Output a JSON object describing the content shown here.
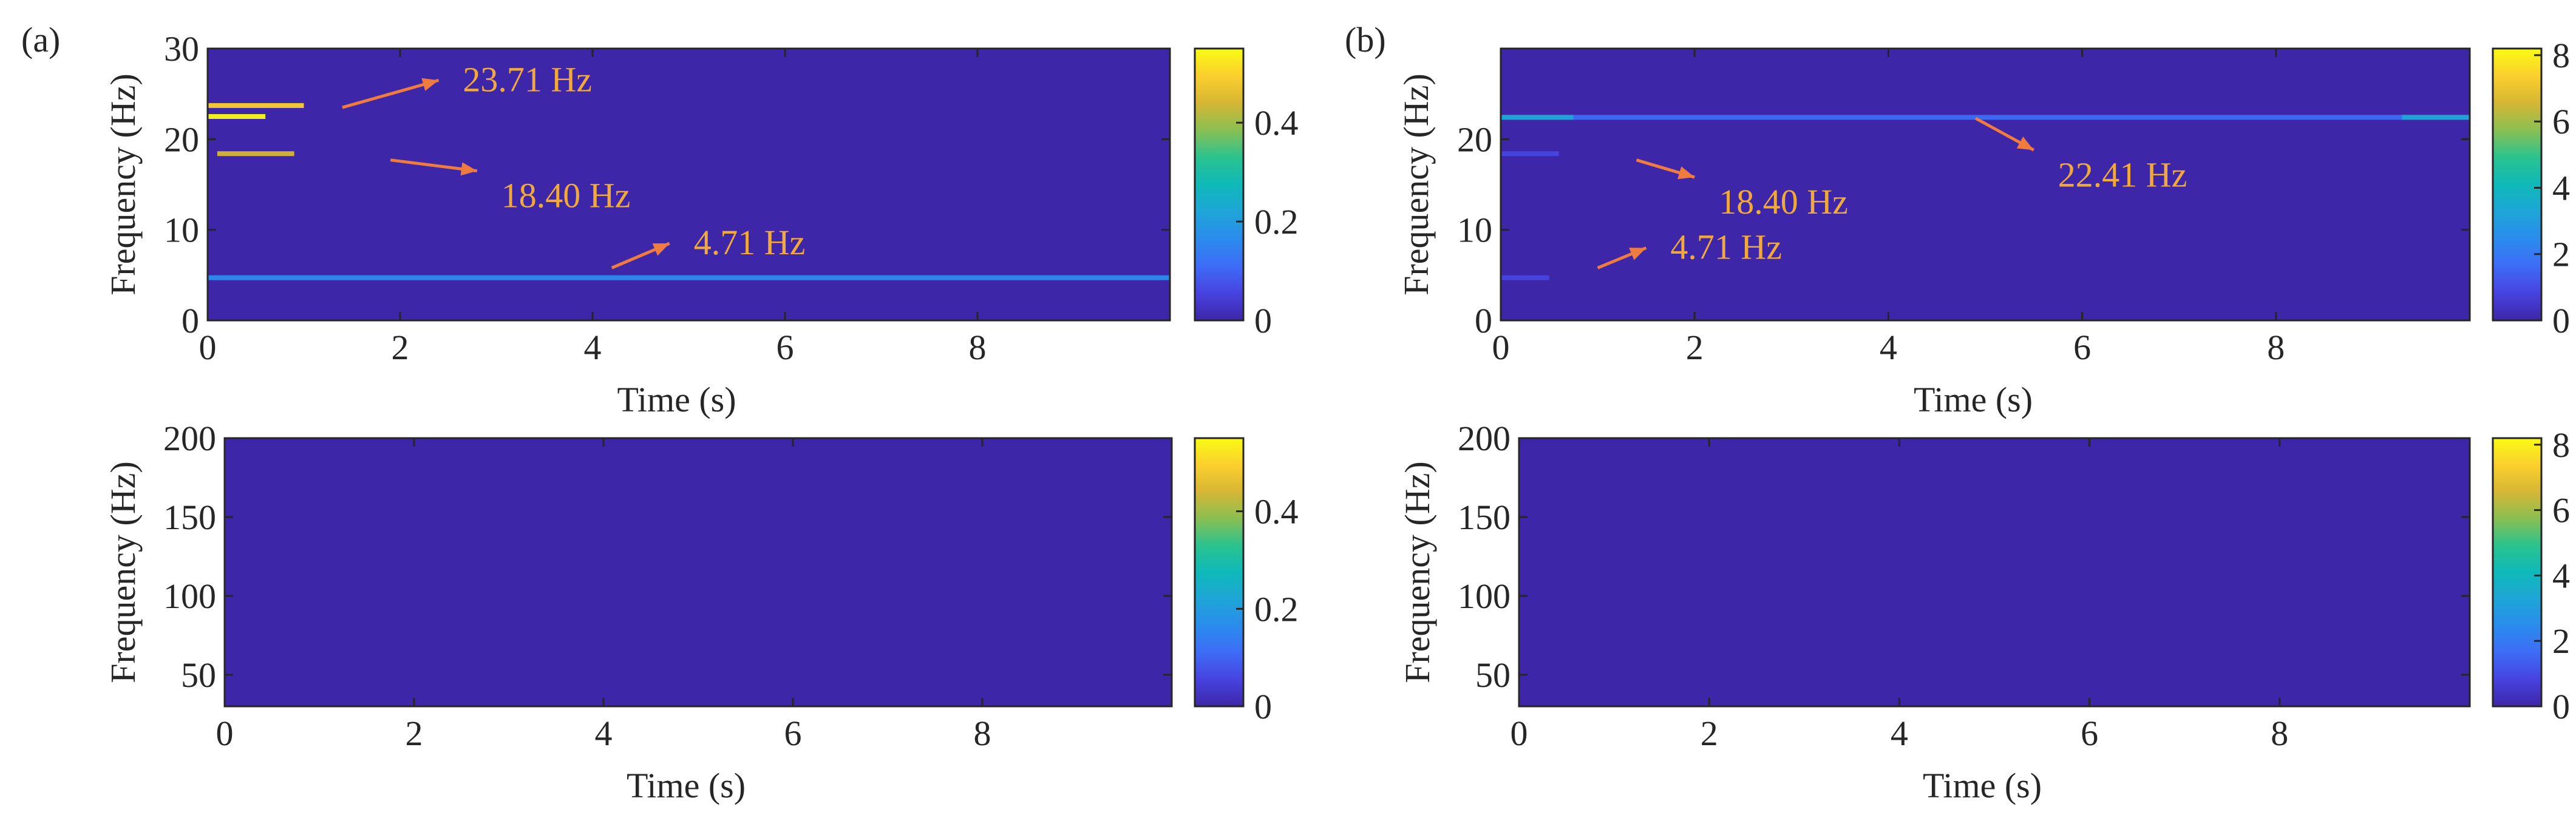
{
  "chart_data": [
    {
      "panel": "(a)",
      "type": "heatmap",
      "title": "",
      "xlabel": "Time (s)",
      "ylabel": "Frequency (Hz)",
      "xlim": [
        0,
        10
      ],
      "ylim": [
        0,
        30
      ],
      "xticks": [
        0,
        2,
        4,
        6,
        8
      ],
      "yticks": [
        0,
        10,
        20,
        30
      ],
      "colorbar": {
        "min": 0,
        "max": 0.55,
        "ticks": [
          0,
          0.2,
          0.4
        ]
      },
      "ridges": [
        {
          "freq": 23.71,
          "t_start": 0.0,
          "t_end": 1.0,
          "value": 0.5
        },
        {
          "freq": 22.5,
          "t_start": 0.0,
          "t_end": 0.6,
          "value": 0.55
        },
        {
          "freq": 18.4,
          "t_start": 0.1,
          "t_end": 0.9,
          "value": 0.45
        },
        {
          "freq": 4.71,
          "t_start": 0.0,
          "t_end": 10.0,
          "value": 0.15
        }
      ],
      "annotations": [
        {
          "text": "23.71 Hz",
          "from": [
            1.4,
            23.5
          ],
          "to": [
            2.4,
            26.5
          ]
        },
        {
          "text": "18.40 Hz",
          "from": [
            1.9,
            17.7
          ],
          "to": [
            2.8,
            16.5
          ]
        },
        {
          "text": "4.71  Hz",
          "from": [
            4.2,
            5.8
          ],
          "to": [
            4.8,
            8.5
          ]
        }
      ]
    },
    {
      "panel": "(a)",
      "type": "heatmap",
      "title": "",
      "xlabel": "Time (s)",
      "ylabel": "Frequency (Hz)",
      "xlim": [
        0,
        10
      ],
      "ylim": [
        30,
        200
      ],
      "xticks": [
        0,
        2,
        4,
        6,
        8
      ],
      "yticks": [
        50,
        100,
        150,
        200
      ],
      "colorbar": {
        "min": 0,
        "max": 0.55,
        "ticks": [
          0,
          0.2,
          0.4
        ]
      },
      "ridges": []
    },
    {
      "panel": "(b)",
      "type": "heatmap",
      "title": "",
      "xlabel": "Time (s)",
      "ylabel": "Frequency (Hz)",
      "xlim": [
        0,
        10
      ],
      "ylim": [
        0,
        30
      ],
      "xticks": [
        0,
        2,
        4,
        6,
        8
      ],
      "yticks": [
        0,
        10,
        20
      ],
      "colorbar": {
        "min": 0,
        "max": 8.2,
        "ticks": [
          0,
          2,
          4,
          6,
          8
        ]
      },
      "ridges": [
        {
          "freq": 22.41,
          "t_start": 0.0,
          "t_end": 10.0,
          "value": 1.5
        },
        {
          "freq": 22.41,
          "t_start": 0.0,
          "t_end": 0.75,
          "value": 3.5
        },
        {
          "freq": 22.41,
          "t_start": 9.3,
          "t_end": 10.0,
          "value": 3.5
        },
        {
          "freq": 18.4,
          "t_start": 0.0,
          "t_end": 0.6,
          "value": 0.8
        },
        {
          "freq": 4.71,
          "t_start": 0.0,
          "t_end": 0.5,
          "value": 0.5
        }
      ],
      "annotations": [
        {
          "text": "22.41 Hz",
          "from": [
            4.9,
            22.3
          ],
          "to": [
            5.5,
            18.8
          ]
        },
        {
          "text": "18.40 Hz",
          "from": [
            1.4,
            17.7
          ],
          "to": [
            2.0,
            15.8
          ]
        },
        {
          "text": "4.71 Hz",
          "from": [
            1.0,
            5.8
          ],
          "to": [
            1.5,
            8.0
          ]
        }
      ]
    },
    {
      "panel": "(b)",
      "type": "heatmap",
      "title": "",
      "xlabel": "Time (s)",
      "ylabel": "Frequency (Hz)",
      "xlim": [
        0,
        10
      ],
      "ylim": [
        30,
        200
      ],
      "xticks": [
        0,
        2,
        4,
        6,
        8
      ],
      "yticks": [
        50,
        100,
        150,
        200
      ],
      "colorbar": {
        "min": 0,
        "max": 8.2,
        "ticks": [
          0,
          2,
          4,
          6,
          8
        ]
      },
      "ridges": []
    }
  ],
  "colors": {
    "background": "#3e26a8",
    "annotation": "#f2a93b",
    "arrow": "#f07b3f",
    "axis": "#262626"
  },
  "colormap": [
    "#3e26a8",
    "#4743e0",
    "#3e6cf7",
    "#2a8ced",
    "#1fa5d7",
    "#0fb9b9",
    "#2bc28e",
    "#8abf52",
    "#d6b634",
    "#fbcf2d",
    "#f9fb14"
  ]
}
